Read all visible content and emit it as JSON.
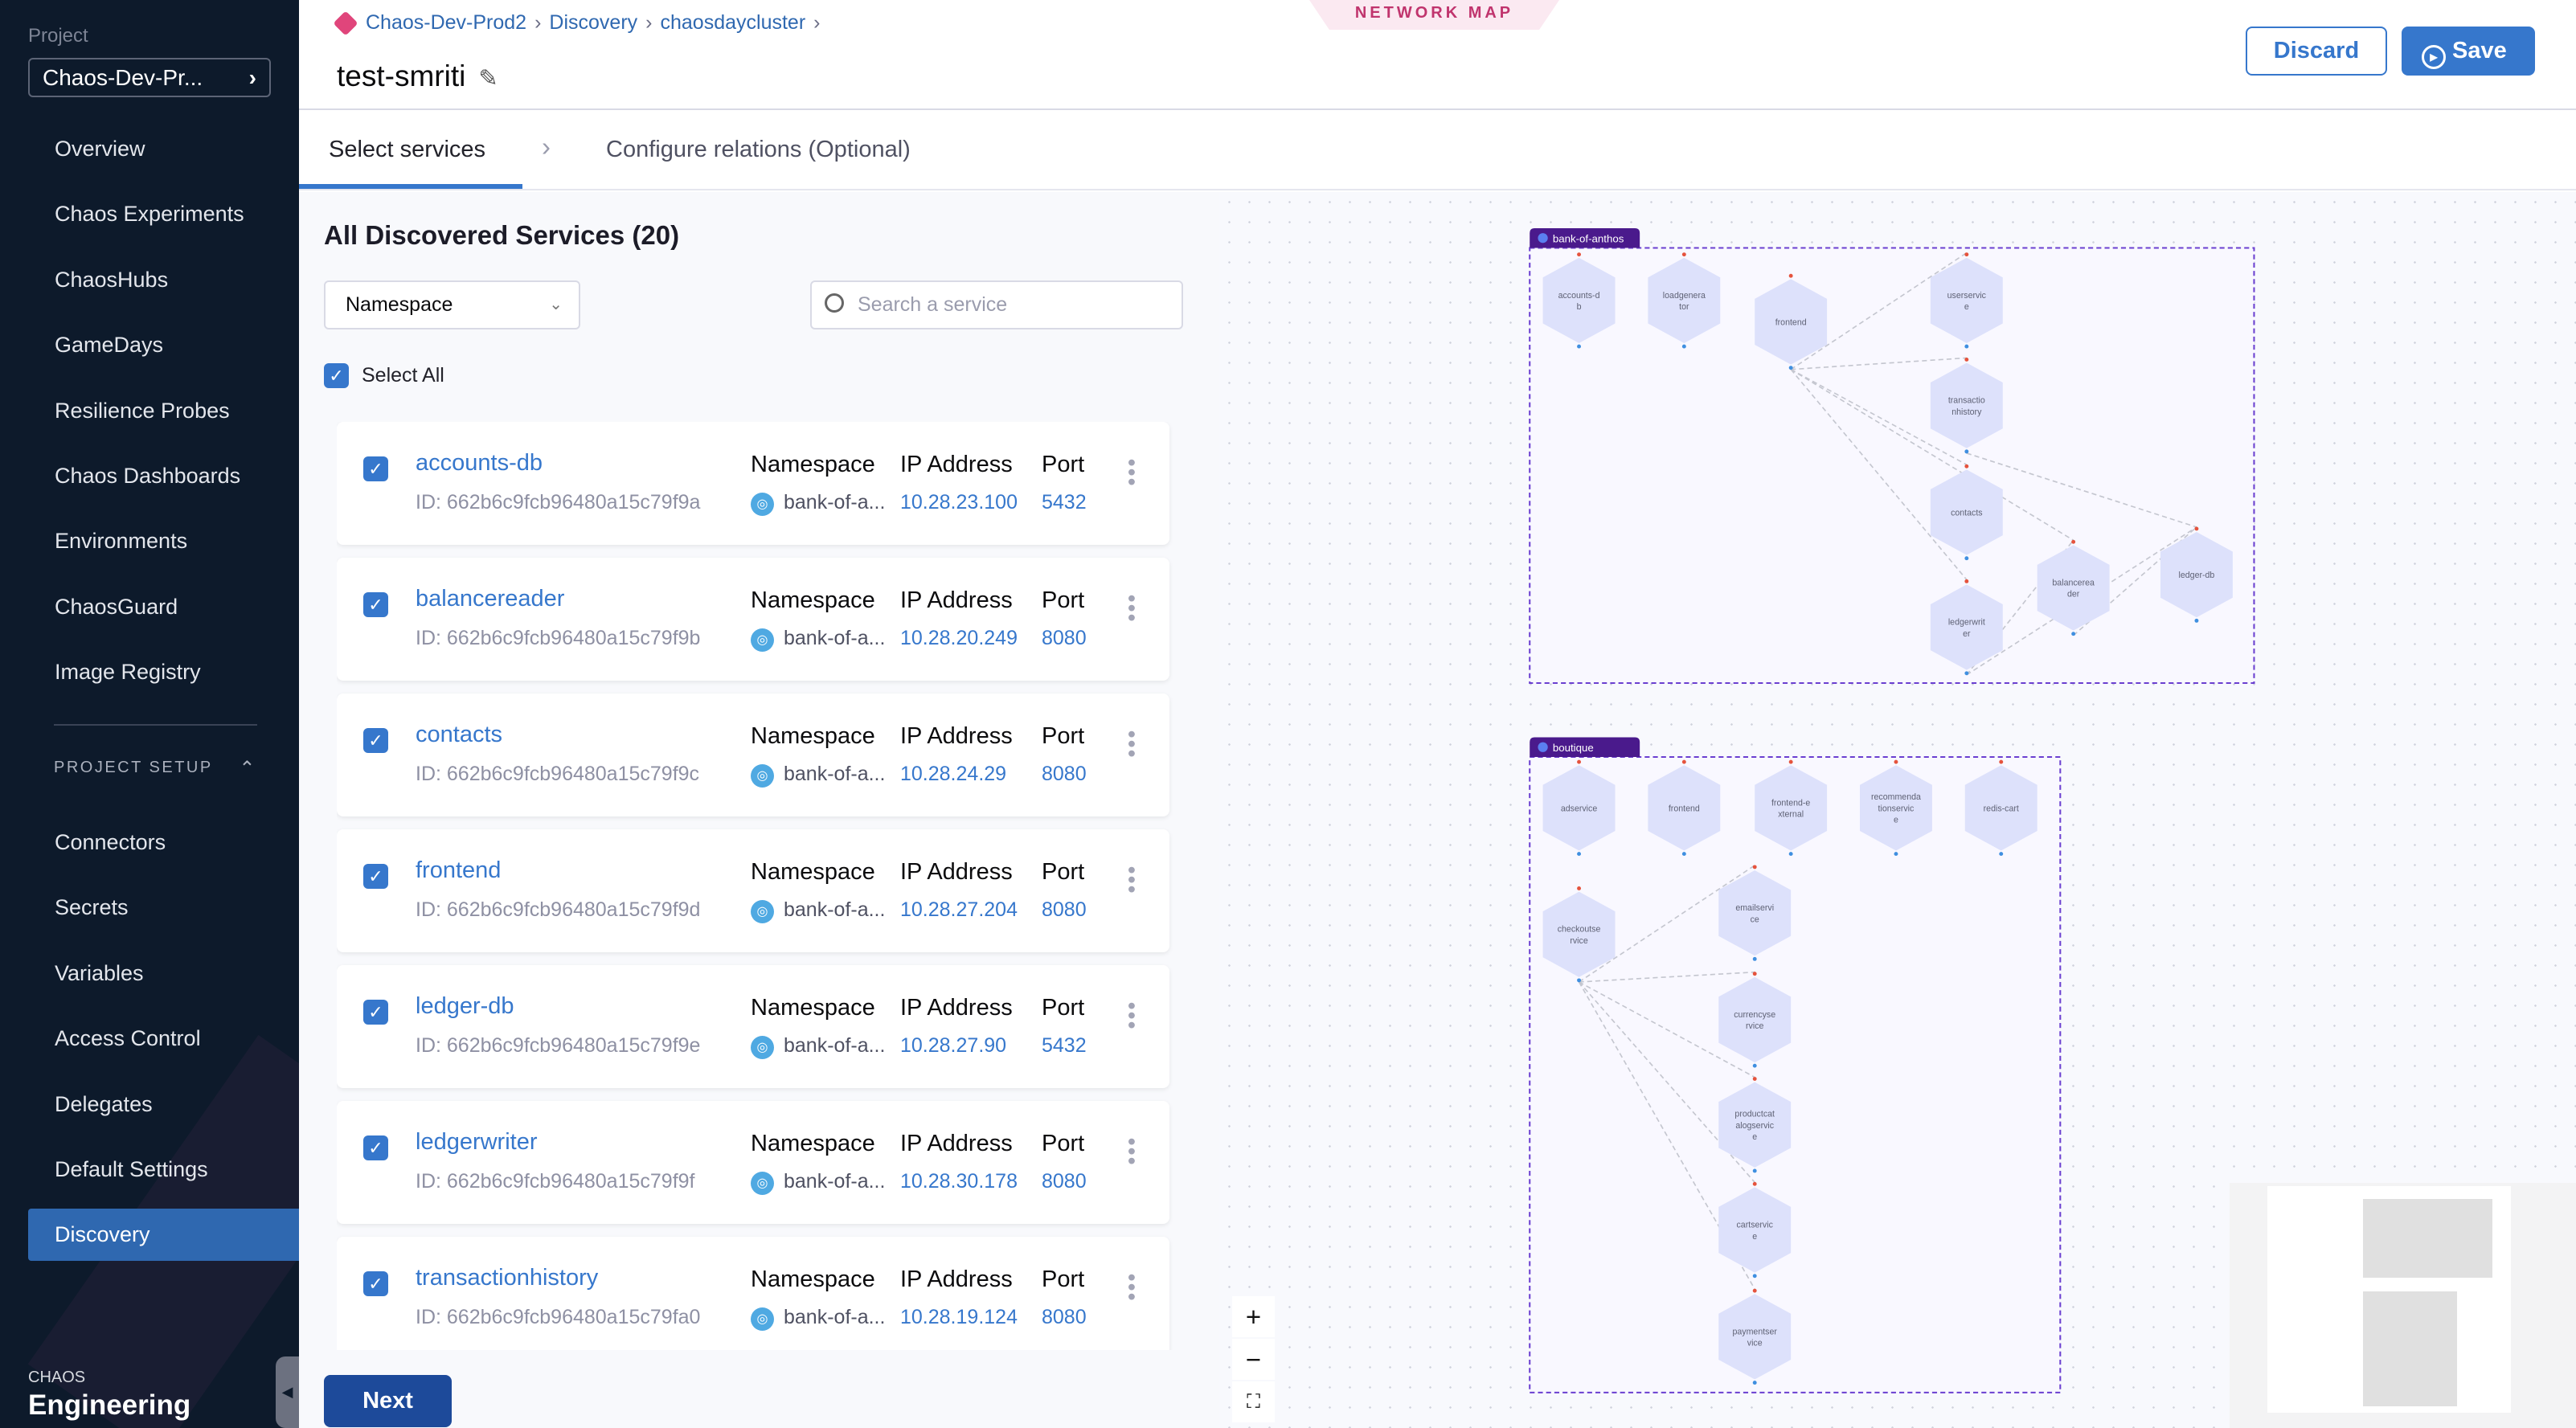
{
  "sidebar": {
    "project_label": "Project",
    "project_value": "Chaos-Dev-Pr...",
    "items": [
      {
        "label": "Overview"
      },
      {
        "label": "Chaos Experiments"
      },
      {
        "label": "ChaosHubs"
      },
      {
        "label": "GameDays"
      },
      {
        "label": "Resilience Probes"
      },
      {
        "label": "Chaos Dashboards"
      },
      {
        "label": "Environments"
      },
      {
        "label": "ChaosGuard"
      },
      {
        "label": "Image Registry"
      }
    ],
    "section_title": "PROJECT SETUP",
    "setup_items": [
      {
        "label": "Connectors"
      },
      {
        "label": "Secrets"
      },
      {
        "label": "Variables"
      },
      {
        "label": "Access Control"
      },
      {
        "label": "Delegates"
      },
      {
        "label": "Default Settings"
      },
      {
        "label": "Discovery",
        "active": true
      }
    ],
    "brand_small": "CHAOS",
    "brand_big": "Engineering"
  },
  "header": {
    "breadcrumbs": [
      "Chaos-Dev-Prod2",
      "Discovery",
      "chaosdaycluster"
    ],
    "title": "test-smriti",
    "network_map_badge": "NETWORK MAP",
    "discard_label": "Discard",
    "save_label": "Save"
  },
  "tabs": [
    {
      "label": "Select services",
      "active": true
    },
    {
      "label": "Configure relations (Optional)",
      "active": false
    }
  ],
  "list": {
    "title": "All Discovered Services (20)",
    "namespace_filter": "Namespace",
    "search_placeholder": "Search a service",
    "select_all_label": "Select All",
    "col_namespace": "Namespace",
    "col_ip": "IP Address",
    "col_port": "Port",
    "services": [
      {
        "name": "accounts-db",
        "id": "ID: 662b6c9fcb96480a15c79f9a",
        "namespace": "bank-of-a...",
        "ip": "10.28.23.100",
        "port": "5432",
        "checked": true
      },
      {
        "name": "balancereader",
        "id": "ID: 662b6c9fcb96480a15c79f9b",
        "namespace": "bank-of-a...",
        "ip": "10.28.20.249",
        "port": "8080",
        "checked": true
      },
      {
        "name": "contacts",
        "id": "ID: 662b6c9fcb96480a15c79f9c",
        "namespace": "bank-of-a...",
        "ip": "10.28.24.29",
        "port": "8080",
        "checked": true
      },
      {
        "name": "frontend",
        "id": "ID: 662b6c9fcb96480a15c79f9d",
        "namespace": "bank-of-a...",
        "ip": "10.28.27.204",
        "port": "8080",
        "checked": true
      },
      {
        "name": "ledger-db",
        "id": "ID: 662b6c9fcb96480a15c79f9e",
        "namespace": "bank-of-a...",
        "ip": "10.28.27.90",
        "port": "5432",
        "checked": true
      },
      {
        "name": "ledgerwriter",
        "id": "ID: 662b6c9fcb96480a15c79f9f",
        "namespace": "bank-of-a...",
        "ip": "10.28.30.178",
        "port": "8080",
        "checked": true
      },
      {
        "name": "transactionhistory",
        "id": "ID: 662b6c9fcb96480a15c79fa0",
        "namespace": "bank-of-a...",
        "ip": "10.28.19.124",
        "port": "8080",
        "checked": true
      }
    ],
    "next_label": "Next"
  },
  "network_map": {
    "groups": [
      {
        "name": "bank-of-anthos",
        "nodes": [
          "accounts-db",
          "loadgenerator",
          "frontend",
          "userservice",
          "transactionhistory",
          "contacts",
          "balancereader",
          "ledger-db",
          "ledgerwriter"
        ],
        "edges": [
          [
            "frontend",
            "userservice"
          ],
          [
            "frontend",
            "transactionhistory"
          ],
          [
            "frontend",
            "contacts"
          ],
          [
            "frontend",
            "ledgerwriter"
          ],
          [
            "frontend",
            "balancereader"
          ],
          [
            "transactionhistory",
            "ledger-db"
          ],
          [
            "ledgerwriter",
            "balancereader"
          ],
          [
            "ledgerwriter",
            "ledger-db"
          ],
          [
            "balancereader",
            "ledger-db"
          ]
        ]
      },
      {
        "name": "boutique",
        "nodes": [
          "adservice",
          "frontend",
          "frontend-external",
          "recommendationservice",
          "redis-cart",
          "checkoutservice",
          "emailservice",
          "currencyservice",
          "productcatalogservice",
          "cartservice",
          "paymentservice"
        ],
        "edges": [
          [
            "checkoutservice",
            "emailservice"
          ],
          [
            "checkoutservice",
            "currencyservice"
          ],
          [
            "checkoutservice",
            "productcatalogservice"
          ],
          [
            "checkoutservice",
            "cartservice"
          ],
          [
            "checkoutservice",
            "paymentservice"
          ]
        ]
      }
    ],
    "zoom_controls": [
      "+",
      "−",
      "⛶"
    ],
    "colors": {
      "group_tag": "#4a1a8c",
      "group_border": "#6a3fd0",
      "node_fill": "#dde1fb",
      "edge": "#c4c6cf",
      "in_port": "#e5533d",
      "out_port": "#3f8fe0"
    }
  },
  "colors": {
    "accent": "#3677cc",
    "sidebar_bg": "#0d1a2b",
    "next_button": "#1d4a9a"
  }
}
